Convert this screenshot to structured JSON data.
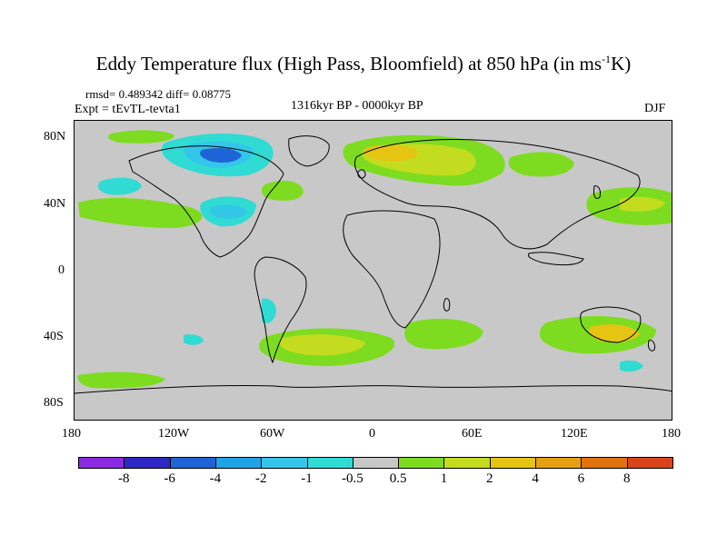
{
  "title_main": "Eddy Temperature flux (High Pass, Bloomfield) at 850 hPa (in ms",
  "title_sup": "-1",
  "title_end": "K)",
  "stats": "rmsd= 0.489342 diff= 0.08775",
  "experiment": "Expt = tEvTL-tevta1",
  "period": "1316kyr BP - 0000kyr BP",
  "season": "DJF",
  "lat_labels": [
    "80N",
    "40N",
    "0",
    "40S",
    "80S"
  ],
  "lon_labels": [
    "180",
    "120W",
    "60W",
    "0",
    "60E",
    "120E",
    "180"
  ],
  "colorbar": {
    "colors": [
      "#8a2be2",
      "#2f27c4",
      "#1e64d6",
      "#1fa3e4",
      "#33c6e8",
      "#2fdbd2",
      "#c8c8c8",
      "#7ddc1f",
      "#c3dc1f",
      "#e6c414",
      "#e5a012",
      "#e0730f",
      "#d9451a"
    ],
    "labels": [
      "-8",
      "-6",
      "-4",
      "-2",
      "-1",
      "-0.5",
      "0.5",
      "1",
      "2",
      "4",
      "6",
      "8"
    ]
  }
}
